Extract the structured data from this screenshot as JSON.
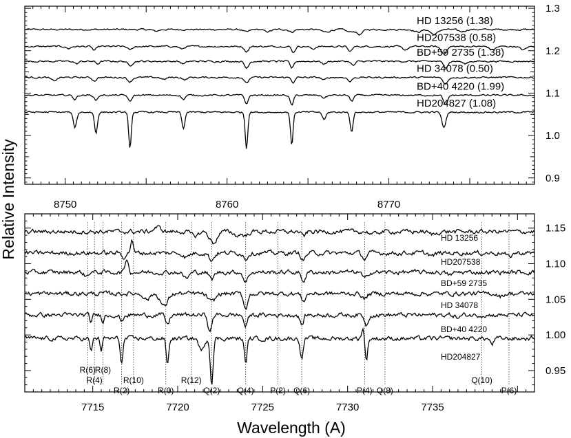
{
  "chart_data": [
    {
      "type": "line",
      "xlabel": "",
      "ylabel": "Relative Intensity",
      "xlim": [
        8747.5,
        8779.0
      ],
      "ylim": [
        0.885,
        1.305
      ],
      "x_ticks": [
        8750,
        8760,
        8770
      ],
      "y_ticks": [
        0.9,
        1.0,
        1.1,
        1.2,
        1.3
      ],
      "y_tick_labels": [
        "0.9",
        "1.0",
        "1.1",
        "1.2",
        "1.3"
      ],
      "series": [
        {
          "name": "HD 13256 (1.38)",
          "offset": 1.25,
          "features": [
            [
              8755.6,
              0.004,
              0.5
            ],
            [
              8761.2,
              0.006,
              0.5
            ],
            [
              8762.5,
              0.005,
              0.6
            ],
            [
              8764.0,
              0.006,
              0.4
            ],
            [
              8766.1,
              0.006,
              0.7
            ],
            [
              8767.6,
              0.006,
              0.6
            ],
            [
              8768.2,
              0.012,
              0.5
            ],
            [
              8771.8,
              0.006,
              0.6
            ],
            [
              8772.8,
              0.012,
              0.6
            ],
            [
              8774.5,
              0.005,
              0.6
            ]
          ]
        },
        {
          "name": "HD207538 (0.58)",
          "offset": 1.21,
          "features": [
            [
              8750.2,
              0.005,
              0.4
            ],
            [
              8751.8,
              0.01,
              0.3
            ],
            [
              8754.0,
              0.008,
              0.4
            ],
            [
              8757.2,
              0.006,
              0.4
            ],
            [
              8761.2,
              0.012,
              0.35
            ],
            [
              8764.1,
              0.014,
              0.3
            ],
            [
              8765.3,
              0.006,
              0.4
            ],
            [
              8767.6,
              0.012,
              0.35
            ],
            [
              8771.0,
              0.008,
              0.5
            ],
            [
              8773.4,
              0.016,
              0.5
            ],
            [
              8776.4,
              0.008,
              0.5
            ],
            [
              8778.3,
              0.008,
              0.5
            ]
          ]
        },
        {
          "name": "BD+59 2735 (1.38)",
          "offset": 1.175,
          "features": [
            [
              8750.7,
              0.006,
              0.35
            ],
            [
              8752.0,
              0.006,
              0.3
            ],
            [
              8754.0,
              0.01,
              0.4
            ],
            [
              8757.3,
              0.006,
              0.4
            ],
            [
              8761.2,
              0.016,
              0.35
            ],
            [
              8764.0,
              0.016,
              0.3
            ],
            [
              8766.0,
              0.006,
              0.4
            ],
            [
              8767.8,
              0.01,
              0.35
            ],
            [
              8773.5,
              0.014,
              0.4
            ],
            [
              8774.7,
              0.006,
              0.4
            ]
          ]
        },
        {
          "name": "HD 34078 (0.50)",
          "offset": 1.137,
          "features": [
            [
              8749.3,
              0.008,
              0.5
            ],
            [
              8751.8,
              0.008,
              0.35
            ],
            [
              8754.0,
              0.01,
              0.4
            ],
            [
              8756.1,
              0.005,
              0.4
            ],
            [
              8757.4,
              0.006,
              0.35
            ],
            [
              8761.2,
              0.014,
              0.35
            ],
            [
              8764.1,
              0.012,
              0.3
            ],
            [
              8766.0,
              0.006,
              0.4
            ],
            [
              8767.6,
              0.01,
              0.35
            ],
            [
              8773.5,
              0.016,
              0.4
            ]
          ]
        },
        {
          "name": "BD+40 4220 (1.99)",
          "offset": 1.095,
          "features": [
            [
              8750.6,
              0.01,
              0.3
            ],
            [
              8751.9,
              0.012,
              0.3
            ],
            [
              8754.0,
              0.016,
              0.3
            ],
            [
              8757.3,
              0.01,
              0.3
            ],
            [
              8761.2,
              0.02,
              0.3
            ],
            [
              8764.0,
              0.024,
              0.3
            ],
            [
              8766.0,
              0.006,
              0.4
            ],
            [
              8767.7,
              0.014,
              0.3
            ],
            [
              8773.5,
              0.024,
              0.35
            ]
          ]
        },
        {
          "name": "HD204827 (1.08)",
          "offset": 1.055,
          "features": [
            [
              8750.6,
              0.036,
              0.3
            ],
            [
              8751.9,
              0.05,
              0.25
            ],
            [
              8754.0,
              0.088,
              0.22
            ],
            [
              8757.3,
              0.04,
              0.25
            ],
            [
              8761.2,
              0.085,
              0.22
            ],
            [
              8764.0,
              0.078,
              0.22
            ],
            [
              8766.0,
              0.018,
              0.3
            ],
            [
              8767.7,
              0.046,
              0.25
            ],
            [
              8773.4,
              0.036,
              0.35
            ]
          ]
        }
      ]
    },
    {
      "type": "line",
      "xlabel": "Wavelength (A)",
      "ylabel": "Relative Intensity",
      "xlim": [
        7711.0,
        7741.0
      ],
      "ylim": [
        0.92,
        1.17
      ],
      "x_ticks": [
        7715,
        7720,
        7725,
        7730,
        7735
      ],
      "y_ticks": [
        0.95,
        1.0,
        1.05,
        1.1,
        1.15
      ],
      "y_tick_labels": [
        "0.95",
        "1.00",
        "1.05",
        "1.10",
        "1.15"
      ],
      "series": [
        {
          "name": "HD 13256",
          "offset": 1.145,
          "features": [
            [
              7718.8,
              -0.006,
              0.6
            ],
            [
              7721.0,
              0.006,
              0.6
            ],
            [
              7722.1,
              0.016,
              0.6
            ],
            [
              7723.5,
              0.006,
              0.5
            ],
            [
              7724.0,
              0.006,
              0.4
            ],
            [
              7727.4,
              0.006,
              0.4
            ],
            [
              7731.5,
              0.004,
              0.5
            ],
            [
              7735.0,
              0.004,
              0.6
            ]
          ]
        },
        {
          "name": "HD207538",
          "offset": 1.115,
          "features": [
            [
              7717.3,
              -0.02,
              0.2
            ],
            [
              7716.8,
              0.006,
              0.3
            ],
            [
              7720.5,
              0.006,
              0.5
            ],
            [
              7722.0,
              0.01,
              0.4
            ],
            [
              7724.0,
              0.008,
              0.35
            ],
            [
              7727.4,
              0.01,
              0.35
            ],
            [
              7731.0,
              0.008,
              0.35
            ],
            [
              7735.0,
              0.004,
              0.5
            ],
            [
              7739.5,
              0.006,
              0.4
            ]
          ]
        },
        {
          "name": "BD+59 2735",
          "offset": 1.088,
          "features": [
            [
              7717.0,
              -0.02,
              0.25
            ],
            [
              7714.6,
              0.006,
              0.3
            ],
            [
              7720.5,
              0.008,
              0.5
            ],
            [
              7722.0,
              0.01,
              0.4
            ],
            [
              7724.0,
              0.014,
              0.35
            ],
            [
              7727.4,
              0.012,
              0.35
            ],
            [
              7731.0,
              0.01,
              0.35
            ],
            [
              7736.0,
              0.004,
              0.5
            ]
          ]
        },
        {
          "name": "HD 34078",
          "offset": 1.058,
          "features": [
            [
              7719.2,
              0.018,
              0.6
            ],
            [
              7718.2,
              0.008,
              0.5
            ],
            [
              7722.0,
              0.012,
              0.6
            ],
            [
              7724.0,
              0.02,
              0.35
            ],
            [
              7727.4,
              0.01,
              0.35
            ],
            [
              7731.0,
              0.008,
              0.35
            ],
            [
              7739.0,
              0.004,
              0.4
            ]
          ]
        },
        {
          "name": "BD+40 4220",
          "offset": 1.028,
          "features": [
            [
              7714.9,
              0.01,
              0.2
            ],
            [
              7715.6,
              0.008,
              0.2
            ],
            [
              7716.7,
              0.01,
              0.25
            ],
            [
              7719.4,
              0.014,
              0.3
            ],
            [
              7721.9,
              0.024,
              0.3
            ],
            [
              7724.0,
              0.016,
              0.3
            ],
            [
              7727.3,
              0.014,
              0.3
            ],
            [
              7731.1,
              0.014,
              0.3
            ],
            [
              7736.5,
              0.004,
              0.4
            ]
          ]
        },
        {
          "name": "HD204827",
          "offset": 0.995,
          "features": [
            [
              7714.9,
              0.02,
              0.18
            ],
            [
              7715.5,
              0.016,
              0.18
            ],
            [
              7716.7,
              0.034,
              0.22
            ],
            [
              7719.4,
              0.036,
              0.22
            ],
            [
              7721.4,
              0.018,
              0.4
            ],
            [
              7722.0,
              0.062,
              0.24
            ],
            [
              7724.0,
              0.036,
              0.22
            ],
            [
              7727.3,
              0.028,
              0.24
            ],
            [
              7730.9,
              -0.016,
              0.2
            ],
            [
              7731.1,
              0.03,
              0.22
            ],
            [
              7738.5,
              0.008,
              0.3
            ]
          ]
        }
      ],
      "line_ids": [
        {
          "label": "R(6)",
          "x": 7714.7
        },
        {
          "label": "R(4)",
          "x": 7715.1
        },
        {
          "label": "R(8)",
          "x": 7715.6
        },
        {
          "label": "R(2)",
          "x": 7716.7
        },
        {
          "label": "R(10)",
          "x": 7717.4
        },
        {
          "label": "R(0)",
          "x": 7719.3
        },
        {
          "label": "R(12)",
          "x": 7720.8
        },
        {
          "label": "Q(2)",
          "x": 7722.0
        },
        {
          "label": "Q(4)",
          "x": 7724.0
        },
        {
          "label": "P(2)",
          "x": 7725.9
        },
        {
          "label": "Q(6)",
          "x": 7727.3
        },
        {
          "label": "P(4)",
          "x": 7731.0
        },
        {
          "label": "Q(8)",
          "x": 7732.2
        },
        {
          "label": "Q(10)",
          "x": 7737.9
        },
        {
          "label": "P(6)",
          "x": 7739.5
        }
      ]
    }
  ]
}
